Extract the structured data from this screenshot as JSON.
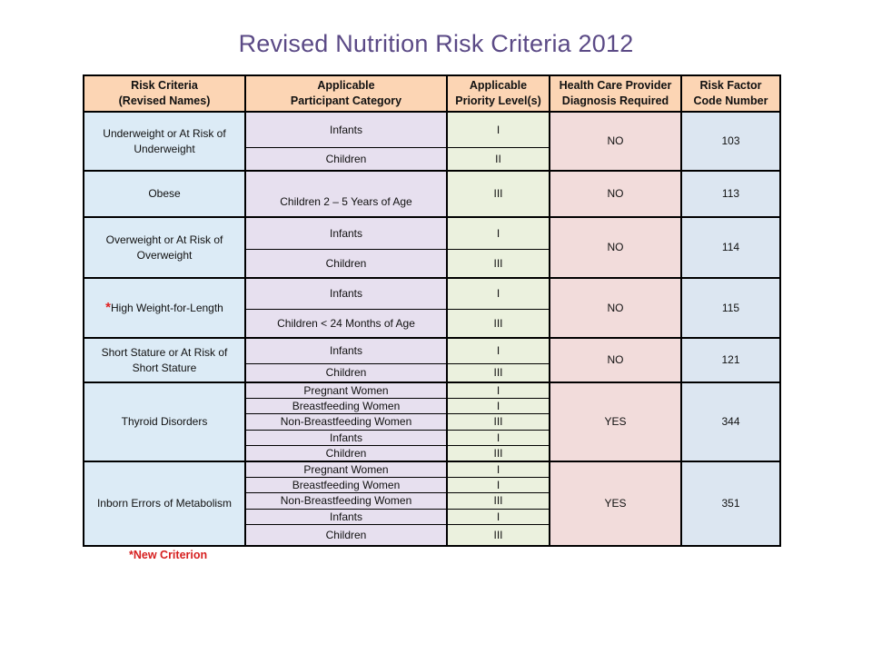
{
  "title": "Revised Nutrition Risk Criteria 2012",
  "headers": {
    "criteria": [
      "Risk Criteria",
      "(Revised Names)"
    ],
    "category": [
      "Applicable",
      "Participant Category"
    ],
    "priority": [
      "Applicable",
      "Priority Level(s)"
    ],
    "diagnosis": [
      "Health Care Provider",
      "Diagnosis Required"
    ],
    "code": [
      "Risk Factor",
      "Code Number"
    ]
  },
  "groups": [
    {
      "criteria": "Underweight or At Risk of Underweight",
      "diagnosis": "NO",
      "code": "103",
      "rows": [
        {
          "category": "Infants",
          "priority": "I"
        },
        {
          "category": "Children",
          "priority": "II"
        }
      ]
    },
    {
      "criteria": "Obese",
      "diagnosis": "NO",
      "code": "113",
      "rows": [
        {
          "category": "Children 2 – 5 Years of Age",
          "priority": "III"
        }
      ]
    },
    {
      "criteria": "Overweight or At Risk of Overweight",
      "diagnosis": "NO",
      "code": "114",
      "rows": [
        {
          "category": "Infants",
          "priority": "I"
        },
        {
          "category": "Children",
          "priority": "III"
        }
      ]
    },
    {
      "criteria": "High Weight-for-Length",
      "marker": "*",
      "diagnosis": "NO",
      "code": "115",
      "rows": [
        {
          "category": "Infants",
          "priority": "I"
        },
        {
          "category": "Children < 24 Months of Age",
          "priority": "III"
        }
      ]
    },
    {
      "criteria": "Short Stature or At Risk of Short Stature",
      "diagnosis": "NO",
      "code": "121",
      "rows": [
        {
          "category": "Infants",
          "priority": "I"
        },
        {
          "category": "Children",
          "priority": "III"
        }
      ]
    },
    {
      "criteria": "Thyroid Disorders",
      "diagnosis": "YES",
      "code": "344",
      "rows": [
        {
          "category": "Pregnant Women",
          "priority": "I"
        },
        {
          "category": "Breastfeeding Women",
          "priority": "I"
        },
        {
          "category": "Non-Breastfeeding Women",
          "priority": "III"
        },
        {
          "category": "Infants",
          "priority": "I"
        },
        {
          "category": "Children",
          "priority": "III"
        }
      ]
    },
    {
      "criteria": "Inborn Errors of Metabolism",
      "diagnosis": "YES",
      "code": "351",
      "rows": [
        {
          "category": "Pregnant Women",
          "priority": "I"
        },
        {
          "category": "Breastfeeding Women",
          "priority": "I"
        },
        {
          "category": "Non-Breastfeeding Women",
          "priority": "III"
        },
        {
          "category": "Infants",
          "priority": "I"
        },
        {
          "category": "Children",
          "priority": "III"
        }
      ]
    }
  ],
  "footnote": "*New Criterion"
}
